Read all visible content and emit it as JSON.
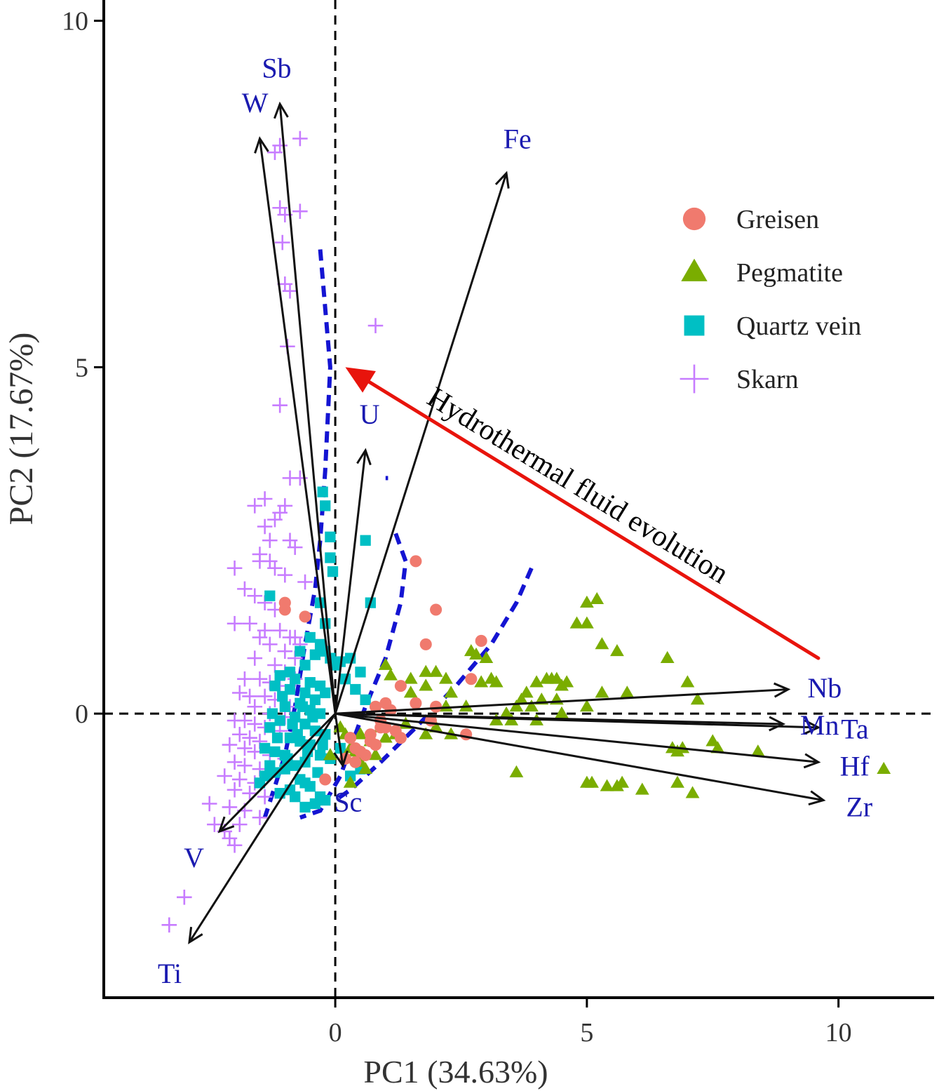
{
  "chart_data": {
    "type": "scatter",
    "subtype": "pca-biplot",
    "xlabel": "PC1 (34.63%)",
    "ylabel": "PC2 (17.67%)",
    "xlim": [
      -4.6,
      11.9
    ],
    "ylim": [
      -4.1,
      10.3
    ],
    "xticks": [
      0,
      5,
      10
    ],
    "yticks": [
      0,
      5,
      10
    ],
    "grid": false,
    "legend": {
      "position": "top-right",
      "entries": [
        {
          "label": "Greisen",
          "marker": "circle",
          "color": "#f07a6e"
        },
        {
          "label": "Pegmatite",
          "marker": "triangle",
          "color": "#7aad00"
        },
        {
          "label": "Quartz vein",
          "marker": "square",
          "color": "#00bfc4"
        },
        {
          "label": "Skarn",
          "marker": "plus",
          "color": "#c77cff"
        }
      ]
    },
    "loadings": [
      {
        "label": "Sb",
        "x": -1.1,
        "y": 8.8
      },
      {
        "label": "W",
        "x": -1.5,
        "y": 8.3
      },
      {
        "label": "Fe",
        "x": 3.4,
        "y": 7.8
      },
      {
        "label": "U",
        "x": 0.6,
        "y": 3.8
      },
      {
        "label": "Nb",
        "x": 9.0,
        "y": 0.35
      },
      {
        "label": "Ta",
        "x": 9.6,
        "y": -0.2
      },
      {
        "label": "Mn",
        "x": 8.9,
        "y": -0.15
      },
      {
        "label": "Hf",
        "x": 9.6,
        "y": -0.7
      },
      {
        "label": "Zr",
        "x": 9.7,
        "y": -1.25
      },
      {
        "label": "Sc",
        "x": 0.15,
        "y": -0.75
      },
      {
        "label": "V",
        "x": -2.3,
        "y": -1.7
      },
      {
        "label": "Ti",
        "x": -2.9,
        "y": -3.3
      }
    ],
    "annotation": {
      "text": "Hydrothermal fluid evolution",
      "arrow_from": [
        9.6,
        0.8
      ],
      "arrow_to": [
        0.2,
        5.0
      ],
      "color": "#e8140c"
    },
    "boundaries": [
      {
        "points": [
          [
            -0.3,
            6.7
          ],
          [
            -0.1,
            5.0
          ],
          [
            -0.2,
            3.5
          ],
          [
            -0.3,
            2.5
          ],
          [
            -0.4,
            1.8
          ],
          [
            -0.6,
            1.0
          ],
          [
            -0.8,
            0.1
          ],
          [
            -1.0,
            -0.6
          ],
          [
            -1.4,
            -1.5
          ]
        ]
      },
      {
        "points": [
          [
            1.2,
            2.6
          ],
          [
            1.4,
            2.2
          ],
          [
            1.3,
            1.6
          ],
          [
            1.0,
            0.8
          ],
          [
            0.6,
            0.1
          ],
          [
            0.3,
            -0.5
          ],
          [
            0.1,
            -0.9
          ],
          [
            -0.3,
            -1.4
          ],
          [
            -0.7,
            -1.5
          ]
        ]
      },
      {
        "points": [
          [
            3.9,
            2.1
          ],
          [
            3.6,
            1.6
          ],
          [
            3.1,
            1.0
          ],
          [
            2.4,
            0.4
          ],
          [
            1.6,
            -0.2
          ],
          [
            0.9,
            -0.7
          ],
          [
            0.3,
            -1.1
          ],
          [
            0.0,
            -1.25
          ]
        ]
      },
      {
        "points": [
          [
            1.0,
            3.4
          ],
          [
            1.05,
            3.4
          ]
        ]
      }
    ],
    "series": [
      {
        "name": "Greisen",
        "x": [
          1.6,
          -1.0,
          -1.0,
          -0.6,
          2.0,
          1.8,
          2.9,
          2.7,
          0.8,
          1.3,
          0.7,
          0.9,
          1.0,
          1.1,
          2.0,
          1.6,
          1.9,
          2.6,
          1.2,
          1.3,
          0.7,
          0.9,
          1.0,
          0.8,
          0.4,
          0.6,
          0.3,
          0.5,
          -0.2,
          0.4,
          0.2
        ],
        "y": [
          2.2,
          1.6,
          1.5,
          1.4,
          1.5,
          1.0,
          1.05,
          0.5,
          0.1,
          0.4,
          -0.3,
          -0.2,
          0.15,
          0.05,
          0.1,
          0.15,
          -0.1,
          -0.3,
          -0.25,
          -0.35,
          -0.4,
          -0.1,
          -0.2,
          -0.45,
          -0.5,
          -0.6,
          -0.35,
          -0.55,
          -0.95,
          -0.7,
          -0.65
        ]
      },
      {
        "name": "Pegmatite",
        "x": [
          5.0,
          5.2,
          4.8,
          5.0,
          5.3,
          5.6,
          6.6,
          7.0,
          4.3,
          4.6,
          4.5,
          5.3,
          5.8,
          7.2,
          4.0,
          4.2,
          4.4,
          3.8,
          4.4,
          5.0,
          3.6,
          2.7,
          2.8,
          3.0,
          3.1,
          2.9,
          3.2,
          2.0,
          1.8,
          2.2,
          1.0,
          1.1,
          1.5,
          1.8,
          1.5,
          2.3,
          2.2,
          2.6,
          3.7,
          3.4,
          3.2,
          4.0,
          4.5,
          1.8,
          2.3,
          3.5,
          3.9,
          4.1,
          4.5,
          5.0,
          5.1,
          5.4,
          5.6,
          5.7,
          6.1,
          6.9,
          7.5,
          7.6,
          8.4,
          6.7,
          6.8,
          10.9,
          7.1,
          6.8,
          0.2,
          0.5,
          0.7,
          0.3,
          -0.1,
          0.5,
          0.9,
          1.0,
          1.2,
          0.8,
          0.4,
          1.4,
          3.6,
          2.0,
          0.1,
          0.6,
          0.3
        ],
        "y": [
          1.6,
          1.65,
          1.3,
          1.3,
          1.0,
          0.9,
          0.8,
          0.45,
          0.5,
          0.45,
          0.4,
          0.3,
          0.3,
          0.2,
          0.45,
          0.5,
          0.5,
          0.3,
          0.2,
          0.1,
          0.1,
          0.9,
          0.85,
          0.8,
          0.5,
          0.45,
          0.45,
          0.6,
          0.6,
          0.5,
          0.7,
          0.55,
          0.5,
          0.4,
          0.3,
          0.3,
          0.1,
          0.1,
          0.2,
          0.0,
          -0.1,
          -0.1,
          0.0,
          -0.3,
          -0.3,
          -0.1,
          0.1,
          0.2,
          0.0,
          -1.0,
          -1.0,
          -1.05,
          -1.05,
          -1.0,
          -1.1,
          -0.5,
          -0.4,
          -0.5,
          -0.55,
          -0.5,
          -0.55,
          -0.8,
          -1.15,
          -1.0,
          -0.3,
          -0.3,
          -0.4,
          -0.5,
          -0.6,
          -0.7,
          -0.2,
          -0.35,
          -0.3,
          -0.6,
          -0.55,
          -0.15,
          -0.85,
          -0.2,
          -0.2,
          -0.8,
          -1.0
        ]
      },
      {
        "name": "Quartz vein",
        "x": [
          -0.25,
          -0.2,
          -0.1,
          -0.1,
          -0.05,
          0.6,
          -1.3,
          -0.3,
          -0.2,
          0.7,
          -0.5,
          -0.3,
          -0.2,
          -0.1,
          0.0,
          0.1,
          0.3,
          0.5,
          -0.7,
          -0.4,
          -0.6,
          -0.9,
          -1.1,
          -0.8,
          -0.5,
          -0.3,
          -0.2,
          0.2,
          0.4,
          0.6,
          -1.2,
          -0.9,
          -0.6,
          -0.4,
          -0.7,
          -1.0,
          -0.5,
          -0.3,
          -0.8,
          -1.1,
          -1.3,
          -0.6,
          -0.4,
          -0.2,
          -0.9,
          -0.7,
          -0.5,
          -1.4,
          -1.2,
          -1.0,
          -0.3,
          -0.1,
          0.1,
          -0.6,
          -0.8,
          -1.0,
          -1.2,
          -1.4,
          -1.5,
          -0.7,
          -0.5,
          -0.9,
          -1.1,
          -0.3,
          -0.2,
          -0.4,
          -0.6,
          0.3,
          0.5,
          -1.3,
          -0.85,
          -0.65,
          -0.45,
          -1.05,
          -1.25,
          -0.75,
          -0.55,
          -0.95,
          -0.35,
          -0.25,
          -1.15,
          -0.6,
          -0.8
        ],
        "y": [
          3.2,
          3.0,
          2.55,
          2.25,
          2.05,
          2.5,
          1.7,
          1.6,
          1.3,
          1.6,
          1.1,
          1.0,
          0.9,
          0.8,
          0.7,
          0.75,
          0.8,
          0.6,
          0.9,
          0.85,
          0.7,
          0.6,
          0.55,
          0.5,
          0.45,
          0.4,
          0.3,
          0.5,
          0.35,
          0.2,
          0.4,
          0.35,
          0.3,
          0.2,
          0.15,
          0.1,
          0.05,
          0.0,
          -0.05,
          -0.1,
          -0.2,
          -0.15,
          -0.25,
          -0.3,
          -0.35,
          -0.4,
          -0.45,
          -0.5,
          -0.55,
          -0.6,
          -0.6,
          -0.65,
          -0.5,
          -0.7,
          -0.75,
          -0.8,
          -0.85,
          -0.9,
          -1.0,
          -0.95,
          -1.05,
          -1.1,
          -1.15,
          -1.2,
          -1.25,
          -1.3,
          -1.35,
          -0.9,
          -0.8,
          -0.75,
          -0.15,
          0.1,
          -0.05,
          0.25,
          0.0,
          -0.3,
          -0.55,
          -0.65,
          -0.85,
          -0.45,
          -0.35,
          -1.0,
          -1.2
        ]
      },
      {
        "name": "Skarn",
        "x": [
          -1.2,
          -0.7,
          -1.1,
          -1.1,
          -1.0,
          -0.7,
          -1.05,
          -1.0,
          -0.95,
          -0.9,
          -0.9,
          0.8,
          -0.7,
          -1.6,
          -1.4,
          -1.0,
          -1.1,
          -1.2,
          -1.4,
          -1.3,
          -1.5,
          -0.9,
          -0.8,
          -1.5,
          -1.3,
          -1.2,
          -1.0,
          -2.0,
          -1.8,
          -1.6,
          -1.4,
          -1.2,
          -2.0,
          -1.7,
          -1.4,
          -1.1,
          -0.9,
          -0.7,
          -1.5,
          -1.3,
          -1.0,
          -0.8,
          -1.6,
          -1.2,
          -1.0,
          -0.8,
          -1.8,
          -1.5,
          -1.3,
          -1.1,
          -1.9,
          -1.7,
          -1.4,
          -1.2,
          -0.9,
          -1.6,
          -1.3,
          -1.0,
          -2.0,
          -1.8,
          -1.6,
          -1.4,
          -1.1,
          -1.9,
          -1.7,
          -1.5,
          -2.1,
          -1.8,
          -1.6,
          -1.3,
          -1.0,
          -2.0,
          -1.8,
          -1.5,
          -1.3,
          -2.2,
          -1.9,
          -1.6,
          -2.0,
          -1.7,
          -1.4,
          -2.5,
          -2.1,
          -1.8,
          -1.5,
          -1.9,
          -2.0,
          -2.4,
          -2.2,
          -2.1,
          -3.0,
          -3.3,
          -0.8,
          -0.6,
          -1.1
        ],
        "y": [
          8.1,
          8.3,
          8.2,
          7.3,
          7.2,
          7.25,
          6.8,
          6.2,
          5.3,
          6.1,
          3.4,
          5.6,
          3.4,
          3.0,
          3.1,
          3.0,
          2.9,
          2.8,
          2.7,
          2.5,
          2.3,
          2.5,
          2.4,
          2.2,
          2.2,
          2.1,
          2.0,
          2.1,
          1.8,
          1.7,
          1.6,
          1.5,
          1.3,
          1.3,
          1.2,
          1.2,
          1.1,
          1.0,
          1.1,
          1.0,
          0.9,
          0.8,
          0.8,
          0.7,
          0.6,
          0.5,
          0.5,
          0.5,
          0.45,
          0.4,
          0.3,
          0.25,
          0.25,
          0.2,
          0.1,
          0.1,
          0.0,
          -0.05,
          -0.1,
          -0.1,
          -0.15,
          -0.2,
          -0.25,
          -0.3,
          -0.35,
          -0.4,
          -0.45,
          -0.5,
          -0.55,
          -0.6,
          -0.65,
          -0.7,
          -0.75,
          -0.8,
          -0.85,
          -0.9,
          -0.95,
          -1.0,
          -1.1,
          -1.15,
          -1.2,
          -1.3,
          -1.35,
          -1.4,
          -1.5,
          -1.6,
          -1.9,
          -1.6,
          -1.7,
          -1.8,
          -2.65,
          -3.05,
          1.1,
          1.9,
          4.45
        ]
      }
    ]
  }
}
